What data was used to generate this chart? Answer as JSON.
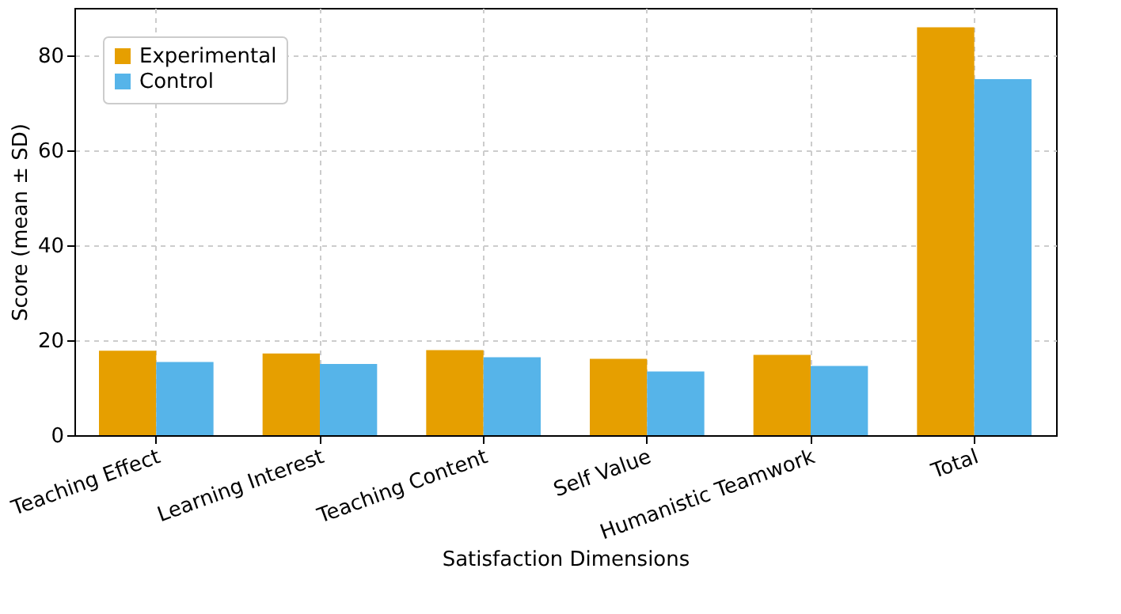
{
  "chart_data": {
    "type": "bar",
    "xlabel": "Satisfaction Dimensions",
    "ylabel": "Score (mean ± SD)",
    "categories": [
      "Teaching Effect",
      "Learning Interest",
      "Teaching Content",
      "Self Value",
      "Humanistic Teamwork",
      "Total"
    ],
    "series": [
      {
        "name": "Experimental",
        "color": "#e69f00",
        "values": [
          17.8,
          17.2,
          17.9,
          16.1,
          16.9,
          85.9
        ]
      },
      {
        "name": "Control",
        "color": "#56b4e9",
        "values": [
          15.4,
          15.0,
          16.4,
          13.4,
          14.6,
          75.0
        ]
      }
    ],
    "ylim": [
      0,
      90
    ],
    "yticks": [
      0,
      20,
      40,
      60,
      80
    ],
    "grid": true,
    "legend": "top left"
  }
}
